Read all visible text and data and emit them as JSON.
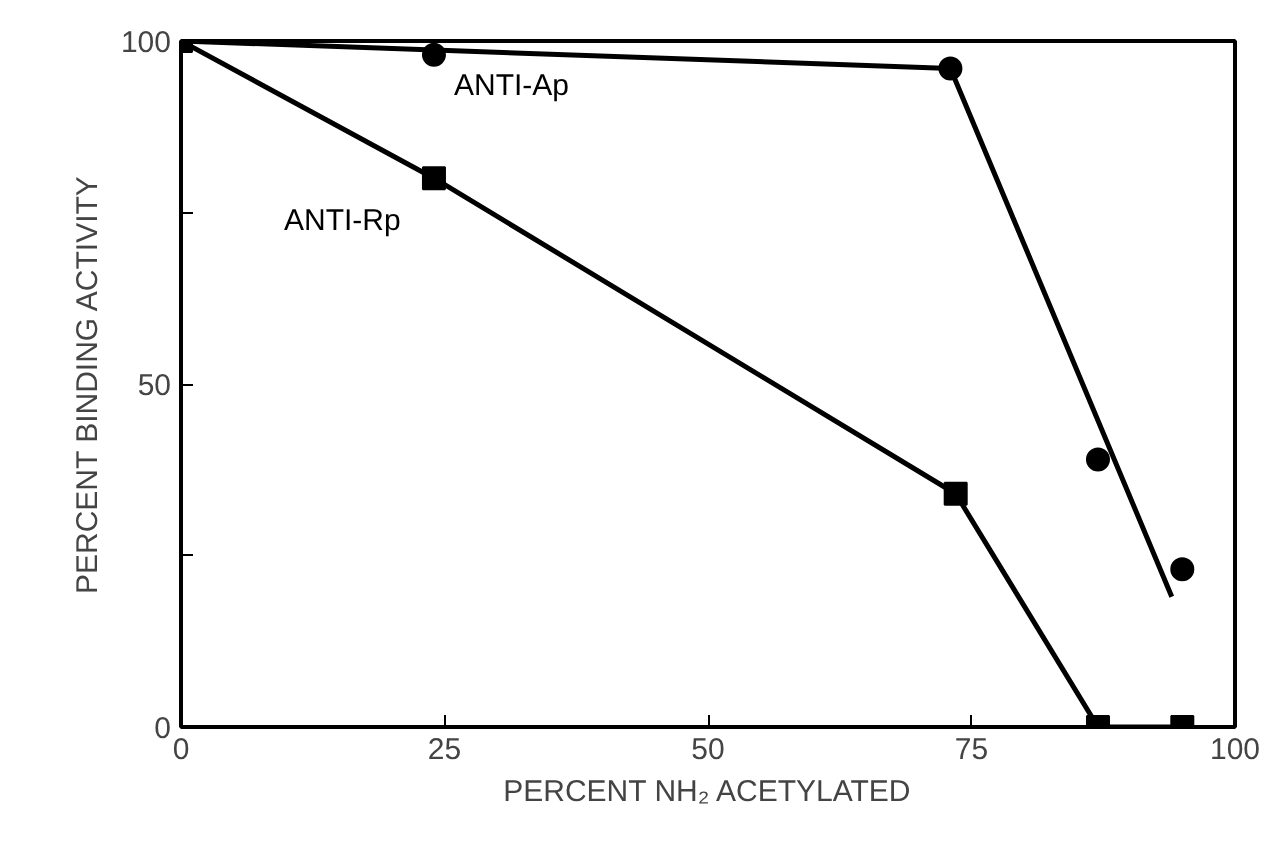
{
  "chart_data": {
    "type": "line",
    "xlabel": "PERCENT NH₂ ACETYLATED",
    "ylabel": "PERCENT BINDING ACTIVITY",
    "xlim": [
      0,
      100
    ],
    "xticks": [
      0,
      25,
      50,
      75,
      100
    ],
    "ylim": [
      0,
      100
    ],
    "yticks": [
      0,
      {
        "value": 25,
        "label": null
      },
      50,
      {
        "value": 75,
        "label": null
      },
      100
    ],
    "grid": false,
    "series": [
      {
        "name": "ANTI-Ap",
        "type": "scatter",
        "marker": "circle",
        "color": "#000000",
        "x": [
          24,
          73,
          87,
          95
        ],
        "values": [
          98,
          96,
          39,
          23
        ]
      },
      {
        "type": "line",
        "marker": "none",
        "color": "#000000",
        "x": [
          0,
          73,
          94
        ],
        "values": [
          100,
          96,
          19
        ]
      },
      {
        "name": "ANTI-Rp",
        "marker": "square",
        "color": "#000000",
        "x": [
          0,
          24,
          73.5,
          87,
          95
        ],
        "values": [
          100,
          80,
          34,
          0,
          0
        ]
      }
    ]
  }
}
